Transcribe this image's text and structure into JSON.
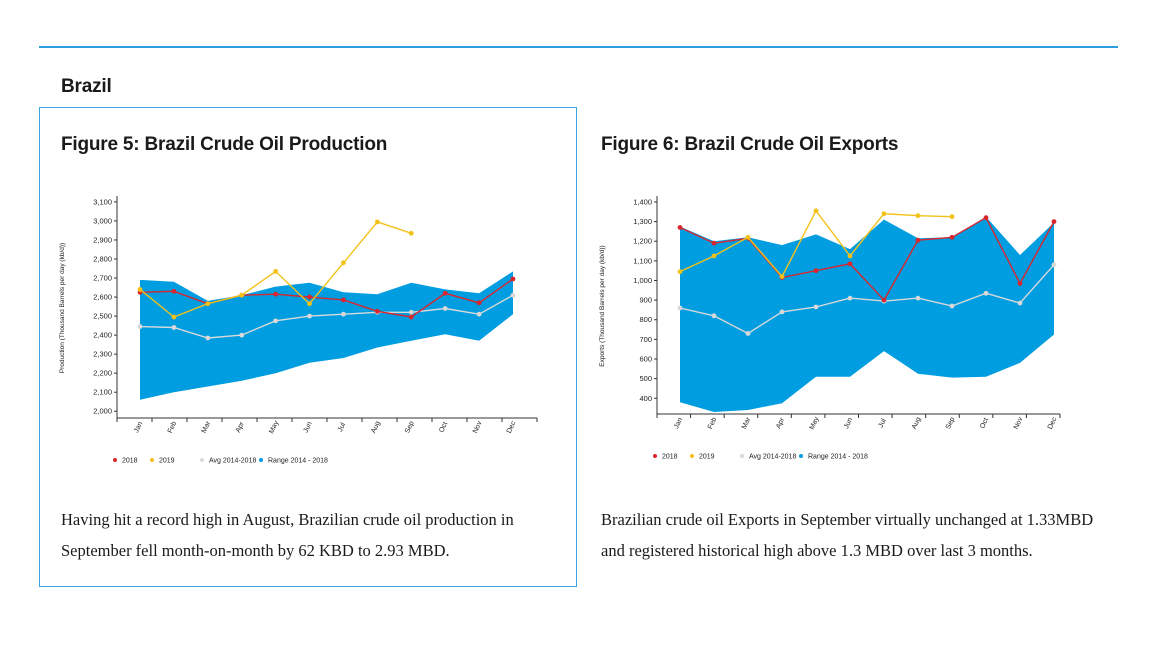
{
  "page": {
    "section_title": "Brazil",
    "figure1_title": "Figure 5: Brazil Crude Oil Production",
    "figure2_title": "Figure 6: Brazil Crude Oil Exports",
    "figure1_text": "Having hit a record high in August, Brazilian crude oil production in September fell month-on-month by 62 KBD to 2.93 MBD.",
    "figure2_text": "Brazilian crude oil Exports in September virtually unchanged at 1.33MBD and registered historical high above 1.3 MBD over last 3 months.",
    "accent_color": "#2b9fde"
  },
  "chart_data": [
    {
      "type": "line",
      "title": "Figure 5: Brazil Crude Oil Production",
      "ylabel": "Production (Thousand Barrels per day (kb/d))",
      "xlabel": "",
      "categories": [
        "Jan",
        "Feb",
        "Mar",
        "Apr",
        "May",
        "Jun",
        "Jul",
        "Aug",
        "Sep",
        "Oct",
        "Nov",
        "Dec"
      ],
      "ylim": [
        1975,
        3110
      ],
      "yticks": [
        2000,
        2100,
        2200,
        2300,
        2400,
        2500,
        2600,
        2700,
        2800,
        2900,
        3000,
        3100
      ],
      "ytick_labels": [
        "2,000",
        "2,100",
        "2,200",
        "2,300",
        "2,400",
        "2,500",
        "2,600",
        "2,700",
        "2,800",
        "2,900",
        "3,000",
        "3,100"
      ],
      "range": {
        "name": "Range 2014 - 2018",
        "color": "#009de0",
        "min": [
          2060,
          2100,
          2130,
          2160,
          2200,
          2255,
          2280,
          2335,
          2370,
          2405,
          2370,
          2510
        ],
        "max": [
          2690,
          2680,
          2580,
          2610,
          2655,
          2675,
          2625,
          2615,
          2675,
          2640,
          2620,
          2735
        ]
      },
      "series": [
        {
          "name": "2018",
          "color": "#d9262e",
          "values": [
            2625,
            2630,
            2565,
            2610,
            2615,
            2600,
            2585,
            2525,
            2495,
            2620,
            2570,
            2695
          ]
        },
        {
          "name": "2019",
          "color": "#f2c21b",
          "values": [
            2640,
            2495,
            2565,
            2610,
            2735,
            2565,
            2780,
            2995,
            2935,
            null,
            null,
            null
          ]
        },
        {
          "name": "Avg 2014-2018",
          "color": "#d9d9d9",
          "values": [
            2445,
            2440,
            2385,
            2400,
            2475,
            2500,
            2510,
            2520,
            2520,
            2540,
            2510,
            2610
          ]
        }
      ],
      "legend": [
        "2018",
        "2019",
        "Avg 2014-2018",
        "Range 2014 - 2018"
      ],
      "legend_position": "bottom-left",
      "grid": false
    },
    {
      "type": "line",
      "title": "Figure 6: Brazil Crude Oil Exports",
      "ylabel": "Exports (Thousand Barrels per day (kb/d))",
      "xlabel": "",
      "categories": [
        "Jan",
        "Feb",
        "Mar",
        "Apr",
        "May",
        "Jun",
        "Jul",
        "Aug",
        "Sep",
        "Oct",
        "Nov",
        "Dec"
      ],
      "ylim": [
        330,
        1410
      ],
      "yticks": [
        400,
        500,
        600,
        700,
        800,
        900,
        1000,
        1100,
        1200,
        1300,
        1400
      ],
      "ytick_labels": [
        "400",
        "500",
        "600",
        "700",
        "800",
        "900",
        "1,000",
        "1,100",
        "1,200",
        "1,300",
        "1,400"
      ],
      "range": {
        "name": "Range 2014 - 2018",
        "color": "#009de0",
        "min": [
          380,
          330,
          340,
          375,
          510,
          510,
          640,
          525,
          505,
          510,
          580,
          725
        ],
        "max": [
          1275,
          1200,
          1220,
          1180,
          1235,
          1160,
          1310,
          1215,
          1220,
          1325,
          1130,
          1295
        ]
      },
      "series": [
        {
          "name": "2018",
          "color": "#d9262e",
          "values": [
            1270,
            1190,
            1215,
            1015,
            1050,
            1085,
            900,
            1205,
            1220,
            1320,
            985,
            1300
          ]
        },
        {
          "name": "2019",
          "color": "#f2c21b",
          "values": [
            1045,
            1125,
            1220,
            1020,
            1355,
            1125,
            1340,
            1330,
            1325,
            null,
            null,
            null
          ]
        },
        {
          "name": "Avg 2014-2018",
          "color": "#d9d9d9",
          "values": [
            860,
            820,
            730,
            840,
            865,
            910,
            895,
            910,
            870,
            935,
            885,
            1080
          ]
        }
      ],
      "legend": [
        "2018",
        "2019",
        "Avg 2014-2018",
        "Range 2014 - 2018"
      ],
      "legend_position": "bottom-left",
      "grid": false
    }
  ]
}
